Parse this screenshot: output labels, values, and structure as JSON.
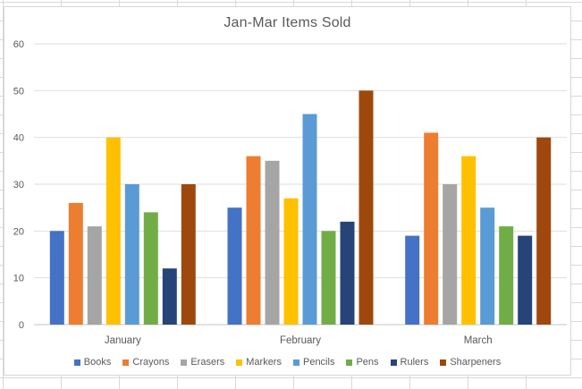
{
  "chart_data": {
    "type": "bar",
    "title": "Jan-Mar Items Sold",
    "categories": [
      "January",
      "February",
      "March"
    ],
    "series": [
      {
        "name": "Books",
        "color": "#4472C4",
        "values": [
          20,
          25,
          19
        ]
      },
      {
        "name": "Crayons",
        "color": "#ED7D31",
        "values": [
          26,
          36,
          41
        ]
      },
      {
        "name": "Erasers",
        "color": "#A5A5A5",
        "values": [
          21,
          35,
          30
        ]
      },
      {
        "name": "Markers",
        "color": "#FFC000",
        "values": [
          40,
          27,
          36
        ]
      },
      {
        "name": "Pencils",
        "color": "#5B9BD5",
        "values": [
          30,
          45,
          25
        ]
      },
      {
        "name": "Pens",
        "color": "#70AD47",
        "values": [
          24,
          20,
          21
        ]
      },
      {
        "name": "Rulers",
        "color": "#264478",
        "values": [
          12,
          22,
          19
        ]
      },
      {
        "name": "Sharpeners",
        "color": "#9E480E",
        "values": [
          30,
          50,
          40
        ]
      }
    ],
    "xlabel": "",
    "ylabel": "",
    "ylim": [
      0,
      60
    ],
    "yticks": [
      0,
      10,
      20,
      30,
      40,
      50,
      60
    ],
    "grid": true,
    "legend_position": "bottom",
    "text_color": "#595959",
    "gridline_color": "#dedede",
    "axis_line_color": "#c6c6c6"
  }
}
